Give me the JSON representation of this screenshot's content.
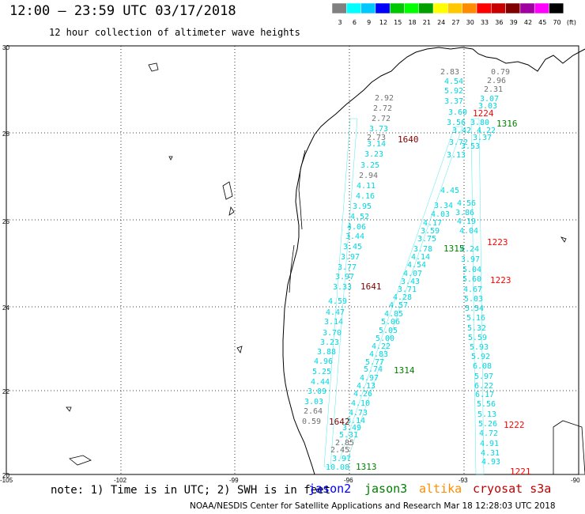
{
  "header": {
    "title": "12:00 – 23:59 UTC 03/17/2018",
    "subtitle": "12 hour collection of altimeter wave heights"
  },
  "colorbar": {
    "labels": [
      "3",
      "6",
      "9",
      "12",
      "15",
      "18",
      "21",
      "24",
      "27",
      "30",
      "33",
      "36",
      "39",
      "42",
      "45",
      "70",
      "(ft)"
    ],
    "colors": [
      "#808080",
      "#00ffff",
      "#00c8ff",
      "#0000ff",
      "#00c800",
      "#00ff00",
      "#00a000",
      "#ffff00",
      "#ffc800",
      "#ff8c00",
      "#ff0000",
      "#c80000",
      "#800000",
      "#a000a0",
      "#ff00ff",
      "#000000"
    ]
  },
  "axes": {
    "lon_labels": [
      "-105",
      "-102",
      "-99",
      "-96",
      "-93",
      "-90"
    ],
    "lat_labels": [
      "30",
      "28",
      "26",
      "24",
      "22",
      "20"
    ]
  },
  "tracks": {
    "labels_1316": "1316",
    "labels_1640": "1640",
    "labels_1224": "1224",
    "labels_1315": "1315",
    "labels_1223a": "1223",
    "labels_1223b": "1223",
    "labels_1641": "1641",
    "labels_1314": "1314",
    "labels_1642": "1642",
    "labels_1222": "1222",
    "labels_1313": "1313",
    "labels_1221": "1221"
  },
  "obs": [
    [
      "2.83",
      0
    ],
    [
      "0.79",
      0
    ],
    [
      "4.54",
      1
    ],
    [
      "2.96",
      0
    ],
    [
      "5.92",
      1
    ],
    [
      "2.31",
      0
    ],
    [
      "3.37",
      1
    ],
    [
      "3.07",
      1
    ],
    [
      "3.60",
      1
    ],
    [
      "3.03",
      1
    ],
    [
      "3.56",
      1
    ],
    [
      "3.80",
      1
    ],
    [
      "3.42",
      1
    ],
    [
      "4.22",
      1
    ],
    [
      "3.37",
      1
    ],
    [
      "3.72",
      1
    ],
    [
      "3.53",
      1
    ],
    [
      "2.73",
      0
    ],
    [
      "3.14",
      1
    ],
    [
      "3.23",
      1
    ],
    [
      "3.25",
      1
    ],
    [
      "2.94",
      0
    ],
    [
      "4.11",
      1
    ],
    [
      "4.16",
      1
    ],
    [
      "3.95",
      1
    ],
    [
      "4.52",
      1
    ],
    [
      "4.06",
      1
    ],
    [
      "3.44",
      1
    ],
    [
      "3.45",
      1
    ],
    [
      "3.97",
      1
    ],
    [
      "3.77",
      1
    ],
    [
      "3.97",
      1
    ],
    [
      "3.33",
      1
    ],
    [
      "4.59",
      1
    ],
    [
      "4.47",
      1
    ],
    [
      "3.14",
      1
    ],
    [
      "3.70",
      1
    ],
    [
      "3.23",
      1
    ],
    [
      "3.88",
      1
    ],
    [
      "4.96",
      1
    ],
    [
      "5.25",
      1
    ],
    [
      "4.44",
      1
    ],
    [
      "3.09",
      1
    ],
    [
      "3.03",
      1
    ],
    [
      "2.64",
      0
    ],
    [
      "0.59",
      0
    ],
    [
      "2.92",
      0
    ],
    [
      "2.72",
      0
    ],
    [
      "2.72",
      0
    ],
    [
      "3.73",
      1
    ],
    [
      "3.13",
      1
    ],
    [
      "4.45",
      1
    ],
    [
      "3.34",
      1
    ],
    [
      "4.03",
      1
    ],
    [
      "4.17",
      1
    ],
    [
      "3.59",
      1
    ],
    [
      "3.75",
      1
    ],
    [
      "3.78",
      1
    ],
    [
      "4.14",
      1
    ],
    [
      "4.54",
      1
    ],
    [
      "4.07",
      1
    ],
    [
      "3.43",
      1
    ],
    [
      "3.71",
      1
    ],
    [
      "4.28",
      1
    ],
    [
      "4.57",
      1
    ],
    [
      "4.85",
      1
    ],
    [
      "5.06",
      1
    ],
    [
      "5.05",
      1
    ],
    [
      "5.00",
      1
    ],
    [
      "4.22",
      1
    ],
    [
      "4.83",
      1
    ],
    [
      "5.77",
      1
    ],
    [
      "5.74",
      1
    ],
    [
      "4.97",
      1
    ],
    [
      "4.13",
      1
    ],
    [
      "4.26",
      1
    ],
    [
      "4.10",
      1
    ],
    [
      "4.73",
      1
    ],
    [
      "3.14",
      1
    ],
    [
      "3.49",
      1
    ],
    [
      "5.31",
      1
    ],
    [
      "2.85",
      0
    ],
    [
      "2.45",
      0
    ],
    [
      "10.08",
      1
    ],
    [
      "3.97",
      1
    ],
    [
      "4.56",
      1
    ],
    [
      "3.86",
      1
    ],
    [
      "4.19",
      1
    ],
    [
      "4.04",
      1
    ],
    [
      "4.24",
      1
    ],
    [
      "3.97",
      1
    ],
    [
      "5.04",
      1
    ],
    [
      "5.60",
      1
    ],
    [
      "4.67",
      1
    ],
    [
      "5.03",
      1
    ],
    [
      "5.54",
      1
    ],
    [
      "5.16",
      1
    ],
    [
      "5.32",
      1
    ],
    [
      "5.59",
      1
    ],
    [
      "5.93",
      1
    ],
    [
      "5.92",
      1
    ],
    [
      "6.08",
      1
    ],
    [
      "5.97",
      1
    ],
    [
      "6.22",
      1
    ],
    [
      "6.17",
      1
    ],
    [
      "5.56",
      1
    ],
    [
      "5.13",
      1
    ],
    [
      "5.26",
      1
    ],
    [
      "4.72",
      1
    ],
    [
      "4.91",
      1
    ],
    [
      "4.31",
      1
    ],
    [
      "4.93",
      1
    ]
  ],
  "footer": {
    "note": "note: 1) Time is in UTC; 2) SWH is in feet",
    "legend_jason2": "jason2",
    "legend_jason3": "jason3",
    "legend_altika": "altika",
    "legend_cryosat": "cryosat s3a",
    "credit": "NOAA/NESDIS Center for Satellite Applications and Research   Mar 18 12:28:03 UTC 2018"
  }
}
